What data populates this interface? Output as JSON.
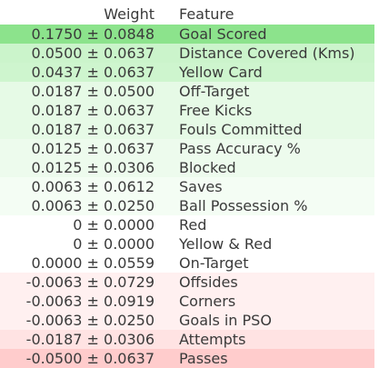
{
  "table": {
    "headers": {
      "weight": "Weight",
      "feature": "Feature"
    },
    "rows": [
      {
        "weight": "0.1750 ± 0.0848",
        "feature": "Goal Scored",
        "color": "#8ce38c"
      },
      {
        "weight": "0.0500 ± 0.0637",
        "feature": "Distance Covered (Kms)",
        "color": "#cbf4cb"
      },
      {
        "weight": "0.0437 ± 0.0637",
        "feature": "Yellow Card",
        "color": "#cef5ce"
      },
      {
        "weight": "0.0187 ± 0.0500",
        "feature": "Off-Target",
        "color": "#e6fae6"
      },
      {
        "weight": "0.0187 ± 0.0637",
        "feature": "Free Kicks",
        "color": "#e6fae6"
      },
      {
        "weight": "0.0187 ± 0.0637",
        "feature": "Fouls Committed",
        "color": "#e6fae6"
      },
      {
        "weight": "0.0125 ± 0.0637",
        "feature": "Pass Accuracy %",
        "color": "#edfbed"
      },
      {
        "weight": "0.0125 ± 0.0306",
        "feature": "Blocked",
        "color": "#edfbed"
      },
      {
        "weight": "0.0063 ± 0.0612",
        "feature": "Saves",
        "color": "#f4fdf4"
      },
      {
        "weight": "0.0063 ± 0.0250",
        "feature": "Ball Possession %",
        "color": "#f4fdf4"
      },
      {
        "weight": "0 ± 0.0000",
        "feature": "Red",
        "color": "#ffffff"
      },
      {
        "weight": "0 ± 0.0000",
        "feature": "Yellow & Red",
        "color": "#ffffff"
      },
      {
        "weight": "0.0000 ± 0.0559",
        "feature": "On-Target",
        "color": "#ffffff"
      },
      {
        "weight": "-0.0063 ± 0.0729",
        "feature": "Offsides",
        "color": "#fff0f0"
      },
      {
        "weight": "-0.0063 ± 0.0919",
        "feature": "Corners",
        "color": "#fff0f0"
      },
      {
        "weight": "-0.0063 ± 0.0250",
        "feature": "Goals in PSO",
        "color": "#fff0f0"
      },
      {
        "weight": "-0.0187 ± 0.0306",
        "feature": "Attempts",
        "color": "#ffe3e3"
      },
      {
        "weight": "-0.0500 ± 0.0637",
        "feature": "Passes",
        "color": "#ffcccc"
      }
    ]
  }
}
